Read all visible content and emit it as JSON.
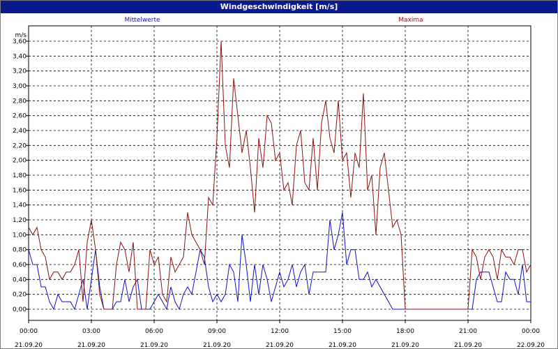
{
  "window": {
    "title": "Windgeschwindigkeit [m/s]"
  },
  "chart_data": {
    "type": "line",
    "title": "Windgeschwindigkeit [m/s]",
    "ylabel": "m/s",
    "ylim": [
      0,
      3.6
    ],
    "yticks": [
      "0,00",
      "0,20",
      "0,40",
      "0,60",
      "0,80",
      "1,00",
      "1,20",
      "1,40",
      "1,60",
      "1,80",
      "2,00",
      "2,20",
      "2,40",
      "2,60",
      "2,80",
      "3,00",
      "3,20",
      "3,40",
      "3,60"
    ],
    "xlim_hours": [
      0,
      24
    ],
    "xticks": [
      {
        "time": "00:00",
        "date": "21.09.20"
      },
      {
        "time": "03:00",
        "date": "21.09.20"
      },
      {
        "time": "06:00",
        "date": "21.09.20"
      },
      {
        "time": "09:00",
        "date": "21.09.20"
      },
      {
        "time": "12:00",
        "date": "21.09.20"
      },
      {
        "time": "15:00",
        "date": "21.09.20"
      },
      {
        "time": "18:00",
        "date": "21.09.20"
      },
      {
        "time": "21:00",
        "date": "21.09.20"
      },
      {
        "time": "00:00",
        "date": "22.09.20"
      }
    ],
    "grid": true,
    "series": [
      {
        "name": "Mittelwerte",
        "color": "#1010c8",
        "x_hours": [
          0.0,
          0.2,
          0.4,
          0.6,
          0.8,
          1.0,
          1.2,
          1.4,
          1.6,
          1.8,
          2.0,
          2.2,
          2.4,
          2.6,
          2.8,
          3.0,
          3.2,
          3.4,
          3.6,
          3.8,
          4.0,
          4.2,
          4.4,
          4.6,
          4.8,
          5.0,
          5.2,
          5.4,
          5.6,
          5.8,
          6.0,
          6.2,
          6.4,
          6.6,
          6.8,
          7.0,
          7.2,
          7.4,
          7.6,
          7.8,
          8.0,
          8.2,
          8.4,
          8.6,
          8.8,
          9.0,
          9.2,
          9.4,
          9.6,
          9.8,
          10.0,
          10.2,
          10.4,
          10.6,
          10.8,
          11.0,
          11.2,
          11.4,
          11.6,
          11.8,
          12.0,
          12.2,
          12.4,
          12.6,
          12.8,
          13.0,
          13.2,
          13.4,
          13.6,
          13.8,
          14.0,
          14.2,
          14.4,
          14.6,
          14.8,
          15.0,
          15.2,
          15.4,
          15.6,
          15.8,
          16.0,
          16.2,
          16.4,
          16.6,
          16.8,
          17.0,
          17.2,
          17.4,
          17.6,
          17.8,
          18.0,
          19.0,
          20.0,
          21.0,
          21.2,
          21.4,
          21.6,
          21.8,
          22.0,
          22.2,
          22.4,
          22.6,
          22.8,
          23.0,
          23.2,
          23.4,
          23.6,
          23.8,
          24.0
        ],
        "values": [
          0.8,
          0.6,
          0.6,
          0.3,
          0.3,
          0.1,
          0.0,
          0.2,
          0.1,
          0.1,
          0.1,
          0.0,
          0.2,
          0.4,
          0.0,
          0.4,
          0.8,
          0.3,
          0.0,
          0.0,
          0.0,
          0.1,
          0.1,
          0.4,
          0.1,
          0.3,
          0.4,
          0.0,
          0.0,
          0.0,
          0.1,
          0.2,
          0.1,
          0.0,
          0.3,
          0.1,
          0.0,
          0.2,
          0.3,
          0.2,
          0.5,
          0.8,
          0.7,
          0.3,
          0.1,
          0.2,
          0.1,
          0.2,
          0.6,
          0.5,
          0.1,
          1.0,
          0.6,
          0.1,
          0.6,
          0.2,
          0.6,
          0.4,
          0.1,
          0.3,
          0.5,
          0.3,
          0.4,
          0.6,
          0.3,
          0.5,
          0.6,
          0.2,
          0.5,
          0.5,
          0.5,
          0.5,
          1.2,
          0.8,
          1.0,
          1.3,
          0.6,
          0.8,
          0.8,
          0.4,
          0.4,
          0.5,
          0.3,
          0.4,
          0.3,
          0.2,
          0.1,
          0.0,
          0.0,
          0.0,
          0.0,
          0.0,
          0.0,
          0.0,
          0.0,
          0.4,
          0.5,
          0.5,
          0.5,
          0.3,
          0.1,
          0.1,
          0.5,
          0.4,
          0.4,
          0.2,
          0.6,
          0.1,
          0.1
        ]
      },
      {
        "name": "Maxima",
        "color": "#8c0f0f",
        "x_hours": [
          0.0,
          0.2,
          0.4,
          0.6,
          0.8,
          1.0,
          1.2,
          1.4,
          1.6,
          1.8,
          2.0,
          2.2,
          2.4,
          2.6,
          2.8,
          3.0,
          3.2,
          3.4,
          3.6,
          3.8,
          4.0,
          4.2,
          4.4,
          4.6,
          4.8,
          5.0,
          5.2,
          5.4,
          5.6,
          5.8,
          6.0,
          6.2,
          6.4,
          6.6,
          6.8,
          7.0,
          7.2,
          7.4,
          7.6,
          7.8,
          8.0,
          8.2,
          8.4,
          8.6,
          8.8,
          9.0,
          9.2,
          9.4,
          9.6,
          9.8,
          10.0,
          10.2,
          10.4,
          10.6,
          10.8,
          11.0,
          11.2,
          11.4,
          11.6,
          11.8,
          12.0,
          12.2,
          12.4,
          12.6,
          12.8,
          13.0,
          13.2,
          13.4,
          13.6,
          13.8,
          14.0,
          14.2,
          14.4,
          14.6,
          14.8,
          15.0,
          15.2,
          15.4,
          15.6,
          15.8,
          16.0,
          16.2,
          16.4,
          16.6,
          16.8,
          17.0,
          17.2,
          17.4,
          17.6,
          17.8,
          18.0,
          19.0,
          20.0,
          21.0,
          21.2,
          21.4,
          21.6,
          21.8,
          22.0,
          22.2,
          22.4,
          22.6,
          22.8,
          23.0,
          23.2,
          23.4,
          23.6,
          23.8,
          24.0
        ],
        "values": [
          1.1,
          1.0,
          1.1,
          0.8,
          0.7,
          0.4,
          0.5,
          0.5,
          0.4,
          0.5,
          0.5,
          0.6,
          0.8,
          0.1,
          0.9,
          1.2,
          0.8,
          0.2,
          0.0,
          0.0,
          0.0,
          0.6,
          0.9,
          0.8,
          0.5,
          0.9,
          0.0,
          0.0,
          0.0,
          0.8,
          0.6,
          0.7,
          0.2,
          0.1,
          0.7,
          0.5,
          0.6,
          0.7,
          1.3,
          1.0,
          0.9,
          0.8,
          0.6,
          1.5,
          1.4,
          2.3,
          3.6,
          2.2,
          1.9,
          3.1,
          2.6,
          2.1,
          2.4,
          1.9,
          1.3,
          2.3,
          1.9,
          2.6,
          2.5,
          2.0,
          2.1,
          1.6,
          1.7,
          1.4,
          2.2,
          2.4,
          1.7,
          1.6,
          2.3,
          1.6,
          2.5,
          2.8,
          2.3,
          2.1,
          2.8,
          2.0,
          2.1,
          1.5,
          2.1,
          1.9,
          2.9,
          1.6,
          1.8,
          1.0,
          1.9,
          2.1,
          1.6,
          1.1,
          1.2,
          1.0,
          0.0,
          0.0,
          0.0,
          0.0,
          0.8,
          0.7,
          0.4,
          0.7,
          0.8,
          0.7,
          0.4,
          0.8,
          0.7,
          0.7,
          0.6,
          0.8,
          0.8,
          0.5,
          0.6
        ]
      }
    ]
  }
}
